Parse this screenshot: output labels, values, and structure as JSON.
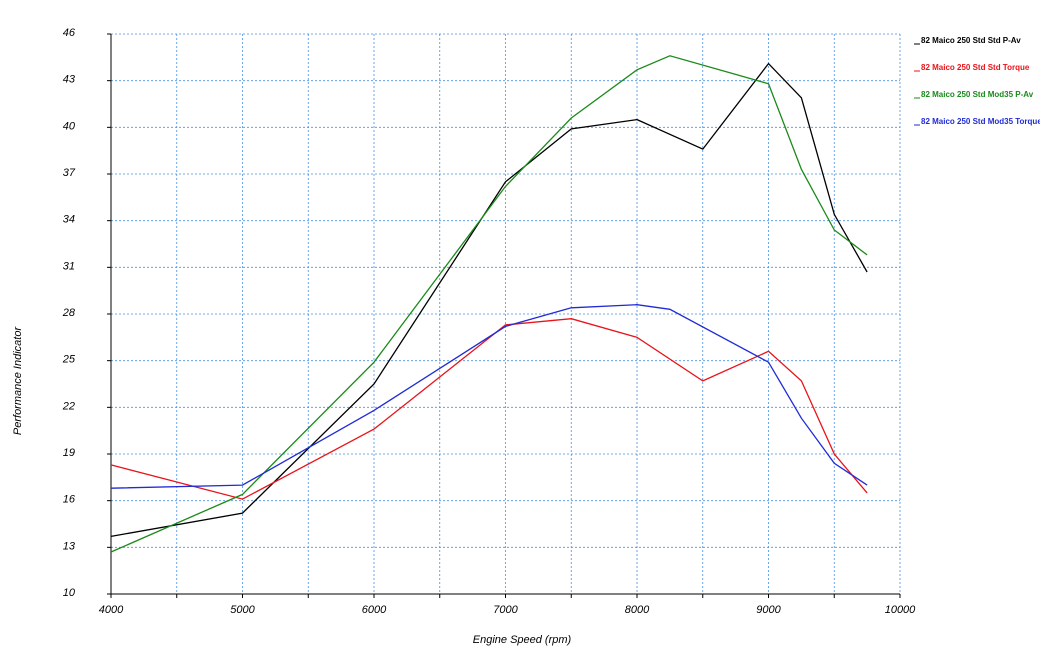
{
  "chart_data": {
    "type": "line",
    "title": "",
    "xlabel": "Engine Speed (rpm)",
    "ylabel": "Performance Indicator",
    "xlim": [
      4000,
      10000
    ],
    "ylim": [
      10,
      46
    ],
    "xticks": [
      4000,
      5000,
      6000,
      7000,
      8000,
      9000,
      10000
    ],
    "xgrid": [
      4000,
      4500,
      5000,
      5500,
      6000,
      6500,
      7000,
      7500,
      8000,
      8500,
      9000,
      9500,
      10000
    ],
    "yticks": [
      10,
      13,
      16,
      19,
      22,
      25,
      28,
      31,
      34,
      37,
      40,
      43,
      46
    ],
    "grid": true,
    "legend_position": "top-right",
    "series": [
      {
        "name": "82 Maico 250 Std Std  P-Av",
        "color": "#000000",
        "x": [
          4000,
          5000,
          6000,
          7000,
          7500,
          8000,
          8500,
          9000,
          9250,
          9500,
          9750
        ],
        "y": [
          13.7,
          15.2,
          23.5,
          36.5,
          39.9,
          40.5,
          38.6,
          44.1,
          41.9,
          34.4,
          30.7
        ]
      },
      {
        "name": "82 Maico 250 Std Std  Torque",
        "color": "#e8141b",
        "x": [
          4000,
          5000,
          6000,
          7000,
          7500,
          8000,
          8500,
          9000,
          9250,
          9500,
          9750
        ],
        "y": [
          18.3,
          16.1,
          20.6,
          27.3,
          27.7,
          26.5,
          23.7,
          25.6,
          23.7,
          19.0,
          16.5
        ]
      },
      {
        "name": "82 Maico 250 Std Mod35  P-Av",
        "color": "#1a8a1a",
        "x": [
          4000,
          5000,
          6000,
          7000,
          7500,
          8000,
          8250,
          8750,
          9000,
          9250,
          9500,
          9750
        ],
        "y": [
          12.7,
          16.4,
          24.9,
          36.2,
          40.6,
          43.7,
          44.6,
          43.4,
          42.8,
          37.3,
          33.4,
          31.8
        ]
      },
      {
        "name": "82 Maico 250 Std Mod35  Torque",
        "color": "#1f2bd6",
        "x": [
          4000,
          5000,
          6000,
          7000,
          7500,
          8000,
          8250,
          9000,
          9250,
          9500,
          9750
        ],
        "y": [
          16.8,
          17.0,
          21.8,
          27.2,
          28.4,
          28.6,
          28.3,
          24.9,
          21.3,
          18.4,
          17.0
        ]
      }
    ]
  }
}
